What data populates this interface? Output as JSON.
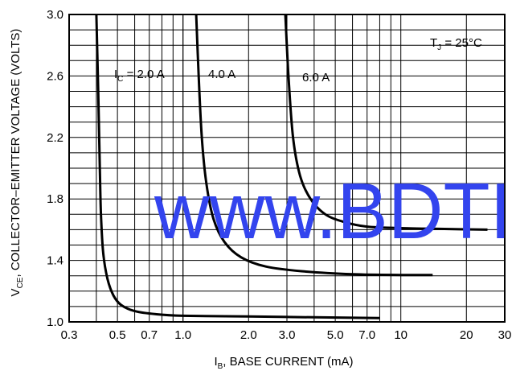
{
  "chart_data": {
    "type": "line",
    "xlabel_main": "I",
    "xlabel_sub": "B",
    "xlabel_rest": ", BASE CURRENT (mA)",
    "ylabel_main": "V",
    "ylabel_sub": "CE",
    "ylabel_rest": ", COLLECTOR–EMITTER VOLTAGE (VOLTS)",
    "x_scale": "log",
    "xlim": [
      0.3,
      30
    ],
    "ylim": [
      1.0,
      3.0
    ],
    "x_ticks": [
      "0.3",
      "0.5",
      "0.7",
      "1.0",
      "2.0",
      "3.0",
      "5.0",
      "7.0",
      "10",
      "20",
      "30"
    ],
    "y_ticks": [
      "1.0",
      "1.4",
      "1.8",
      "2.2",
      "2.6",
      "3.0"
    ],
    "grid": true,
    "annotation": {
      "main": "T",
      "sub": "J",
      "rest": " = 25°C"
    },
    "watermark": "www.BDTI",
    "series": [
      {
        "name_main": "I",
        "name_sub": "C",
        "name_rest": " = 2.0 A",
        "x": [
          0.4,
          0.408,
          0.415,
          0.42,
          0.43,
          0.45,
          0.48,
          0.52,
          0.6,
          0.75,
          1.0,
          2.0,
          4.0,
          8.0
        ],
        "y": [
          3.0,
          2.5,
          2.0,
          1.7,
          1.45,
          1.28,
          1.17,
          1.11,
          1.07,
          1.05,
          1.04,
          1.035,
          1.03,
          1.025
        ]
      },
      {
        "name": "4.0 A",
        "x": [
          1.15,
          1.18,
          1.22,
          1.28,
          1.38,
          1.55,
          1.85,
          2.4,
          3.5,
          6.0,
          10.0,
          14.0
        ],
        "y": [
          3.0,
          2.6,
          2.2,
          1.9,
          1.67,
          1.52,
          1.42,
          1.36,
          1.33,
          1.31,
          1.305,
          1.305
        ]
      },
      {
        "name": "6.0 A",
        "x": [
          2.95,
          3.05,
          3.2,
          3.45,
          3.85,
          4.5,
          5.5,
          7.0,
          10.0,
          15.0,
          25.0
        ],
        "y": [
          3.0,
          2.6,
          2.2,
          1.95,
          1.8,
          1.7,
          1.65,
          1.62,
          1.61,
          1.605,
          1.6
        ]
      }
    ]
  }
}
